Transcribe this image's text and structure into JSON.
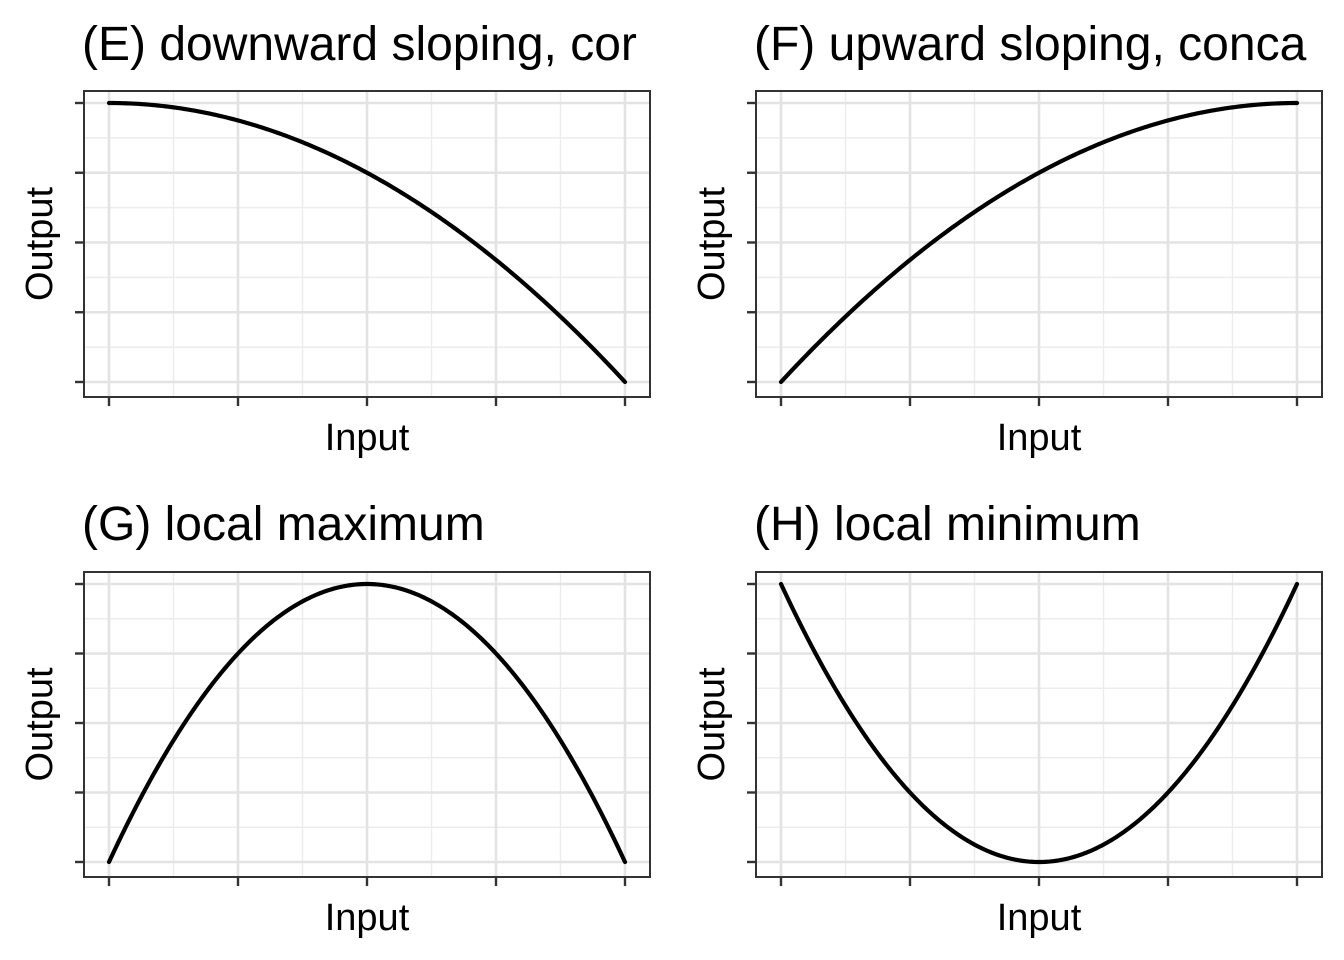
{
  "chart_data": [
    {
      "type": "line",
      "title": "(E) downward sloping, cor",
      "xlabel": "Input",
      "ylabel": "Output",
      "xlim": [
        0,
        1
      ],
      "ylim": [
        0,
        1
      ],
      "grid": true,
      "x": [
        0,
        0.1,
        0.2,
        0.3,
        0.4,
        0.5,
        0.6,
        0.7,
        0.8,
        0.9,
        1.0
      ],
      "y": [
        1.0,
        0.99,
        0.96,
        0.91,
        0.84,
        0.75,
        0.64,
        0.51,
        0.36,
        0.19,
        0.0
      ]
    },
    {
      "type": "line",
      "title": "(F) upward sloping, conca",
      "xlabel": "Input",
      "ylabel": "Output",
      "xlim": [
        0,
        1
      ],
      "ylim": [
        0,
        1
      ],
      "grid": true,
      "x": [
        0,
        0.1,
        0.2,
        0.3,
        0.4,
        0.5,
        0.6,
        0.7,
        0.8,
        0.9,
        1.0
      ],
      "y": [
        0.0,
        0.19,
        0.36,
        0.51,
        0.64,
        0.75,
        0.84,
        0.91,
        0.96,
        0.99,
        1.0
      ]
    },
    {
      "type": "line",
      "title": "(G) local maximum",
      "xlabel": "Input",
      "ylabel": "Output",
      "xlim": [
        0,
        1
      ],
      "ylim": [
        0,
        1
      ],
      "grid": true,
      "x": [
        0,
        0.1,
        0.2,
        0.3,
        0.4,
        0.5,
        0.6,
        0.7,
        0.8,
        0.9,
        1.0
      ],
      "y": [
        0.0,
        0.36,
        0.64,
        0.84,
        0.96,
        1.0,
        0.96,
        0.84,
        0.64,
        0.36,
        0.0
      ]
    },
    {
      "type": "line",
      "title": "(H) local minimum",
      "xlabel": "Input",
      "ylabel": "Output",
      "xlim": [
        0,
        1
      ],
      "ylim": [
        0,
        1
      ],
      "grid": true,
      "x": [
        0,
        0.1,
        0.2,
        0.3,
        0.4,
        0.5,
        0.6,
        0.7,
        0.8,
        0.9,
        1.0
      ],
      "y": [
        1.0,
        0.64,
        0.36,
        0.16,
        0.04,
        0.0,
        0.04,
        0.16,
        0.36,
        0.64,
        1.0
      ]
    }
  ]
}
